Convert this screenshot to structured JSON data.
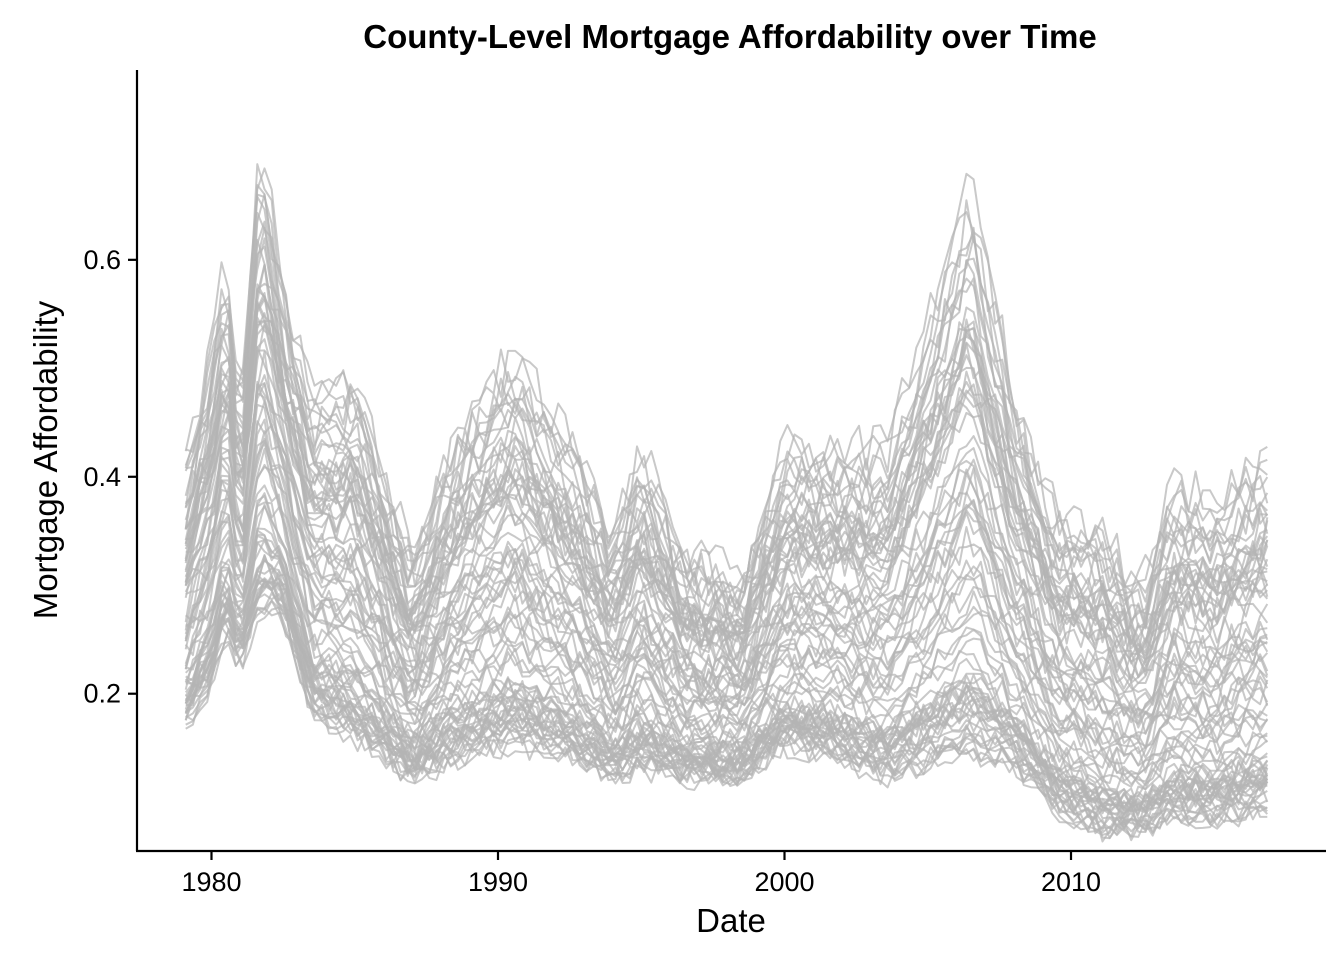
{
  "chart_data": {
    "type": "line",
    "title": "County-Level Mortgage Affordability over Time",
    "xlabel": "Date",
    "ylabel": "Mortgage Affordability",
    "xlim": [
      1977.4,
      2018.9
    ],
    "ylim": [
      0.055,
      0.775
    ],
    "x_ticks": [
      {
        "value": 1980,
        "label": "1980"
      },
      {
        "value": 1990,
        "label": "1990"
      },
      {
        "value": 2000,
        "label": "2000"
      },
      {
        "value": 2010,
        "label": "2010"
      }
    ],
    "y_ticks": [
      {
        "value": 0.2,
        "label": "0.2"
      },
      {
        "value": 0.4,
        "label": "0.4"
      },
      {
        "value": 0.6,
        "label": "0.6"
      }
    ],
    "x_range": [
      1979.1,
      2017.0
    ],
    "n_series": 85,
    "line_color": "#b4b4b4",
    "line_opacity": 0.72,
    "grid": false,
    "legend": "none",
    "envelope_approx": {
      "x": [
        1979.1,
        1980.0,
        1980.5,
        1981.0,
        1981.7,
        1982.5,
        1983.5,
        1985.0,
        1987.0,
        1988.5,
        1990.5,
        1992.5,
        1994.0,
        1995.0,
        1996.5,
        1998.5,
        2000.0,
        2001.5,
        2003.5,
        2005.0,
        2006.5,
        2008.0,
        2009.5,
        2011.0,
        2012.5,
        2013.5,
        2015.0,
        2017.0
      ],
      "upper": [
        0.42,
        0.52,
        0.61,
        0.47,
        0.72,
        0.58,
        0.48,
        0.5,
        0.33,
        0.44,
        0.52,
        0.44,
        0.35,
        0.43,
        0.33,
        0.31,
        0.43,
        0.43,
        0.43,
        0.55,
        0.68,
        0.48,
        0.37,
        0.36,
        0.3,
        0.4,
        0.38,
        0.43
      ],
      "lower": [
        0.17,
        0.21,
        0.26,
        0.22,
        0.28,
        0.27,
        0.18,
        0.16,
        0.12,
        0.14,
        0.15,
        0.14,
        0.12,
        0.13,
        0.12,
        0.12,
        0.15,
        0.14,
        0.12,
        0.13,
        0.14,
        0.13,
        0.09,
        0.07,
        0.07,
        0.08,
        0.08,
        0.09
      ]
    }
  }
}
